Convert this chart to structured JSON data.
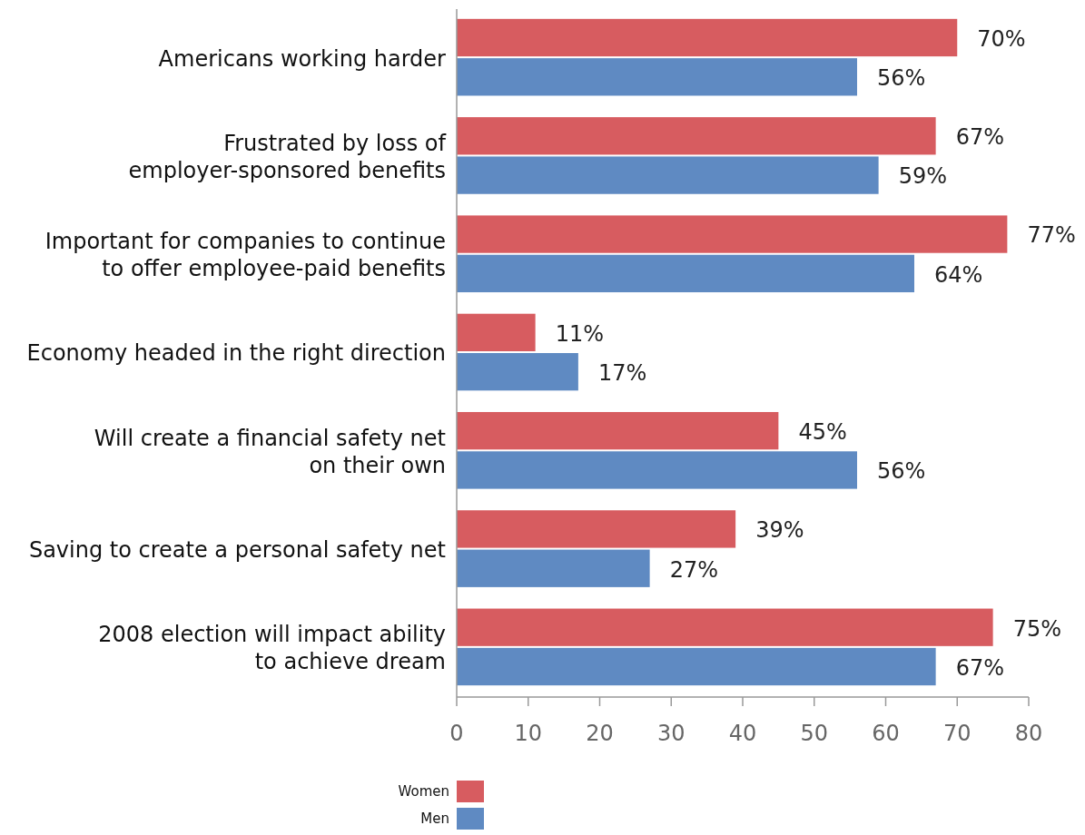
{
  "chart_data": {
    "type": "bar",
    "orientation": "horizontal",
    "categories": [
      "Americans working harder",
      "Frustrated by loss of\nemployer-sponsored benefits",
      "Important for companies to continue\nto offer employee-paid benefits",
      "Economy headed in the right direction",
      "Will create a financial safety net\non their own",
      "Saving to create a personal safety net",
      "2008 election will impact ability\nto achieve dream"
    ],
    "series": [
      {
        "name": "Women",
        "color": "#d75c60",
        "values": [
          70,
          67,
          77,
          11,
          45,
          39,
          75
        ],
        "value_labels": [
          "70%",
          "67%",
          "77%",
          "11%",
          "45%",
          "39%",
          "75%"
        ]
      },
      {
        "name": "Men",
        "color": "#5f8ac2",
        "values": [
          56,
          59,
          64,
          17,
          56,
          27,
          67
        ],
        "value_labels": [
          "56%",
          "59%",
          "64%",
          "17%",
          "56%",
          "27%",
          "67%"
        ]
      }
    ],
    "xlim": [
      0,
      80
    ],
    "xticks": [
      0,
      10,
      20,
      30,
      40,
      50,
      60,
      70,
      80
    ],
    "grid": false,
    "legend": "bottom"
  }
}
